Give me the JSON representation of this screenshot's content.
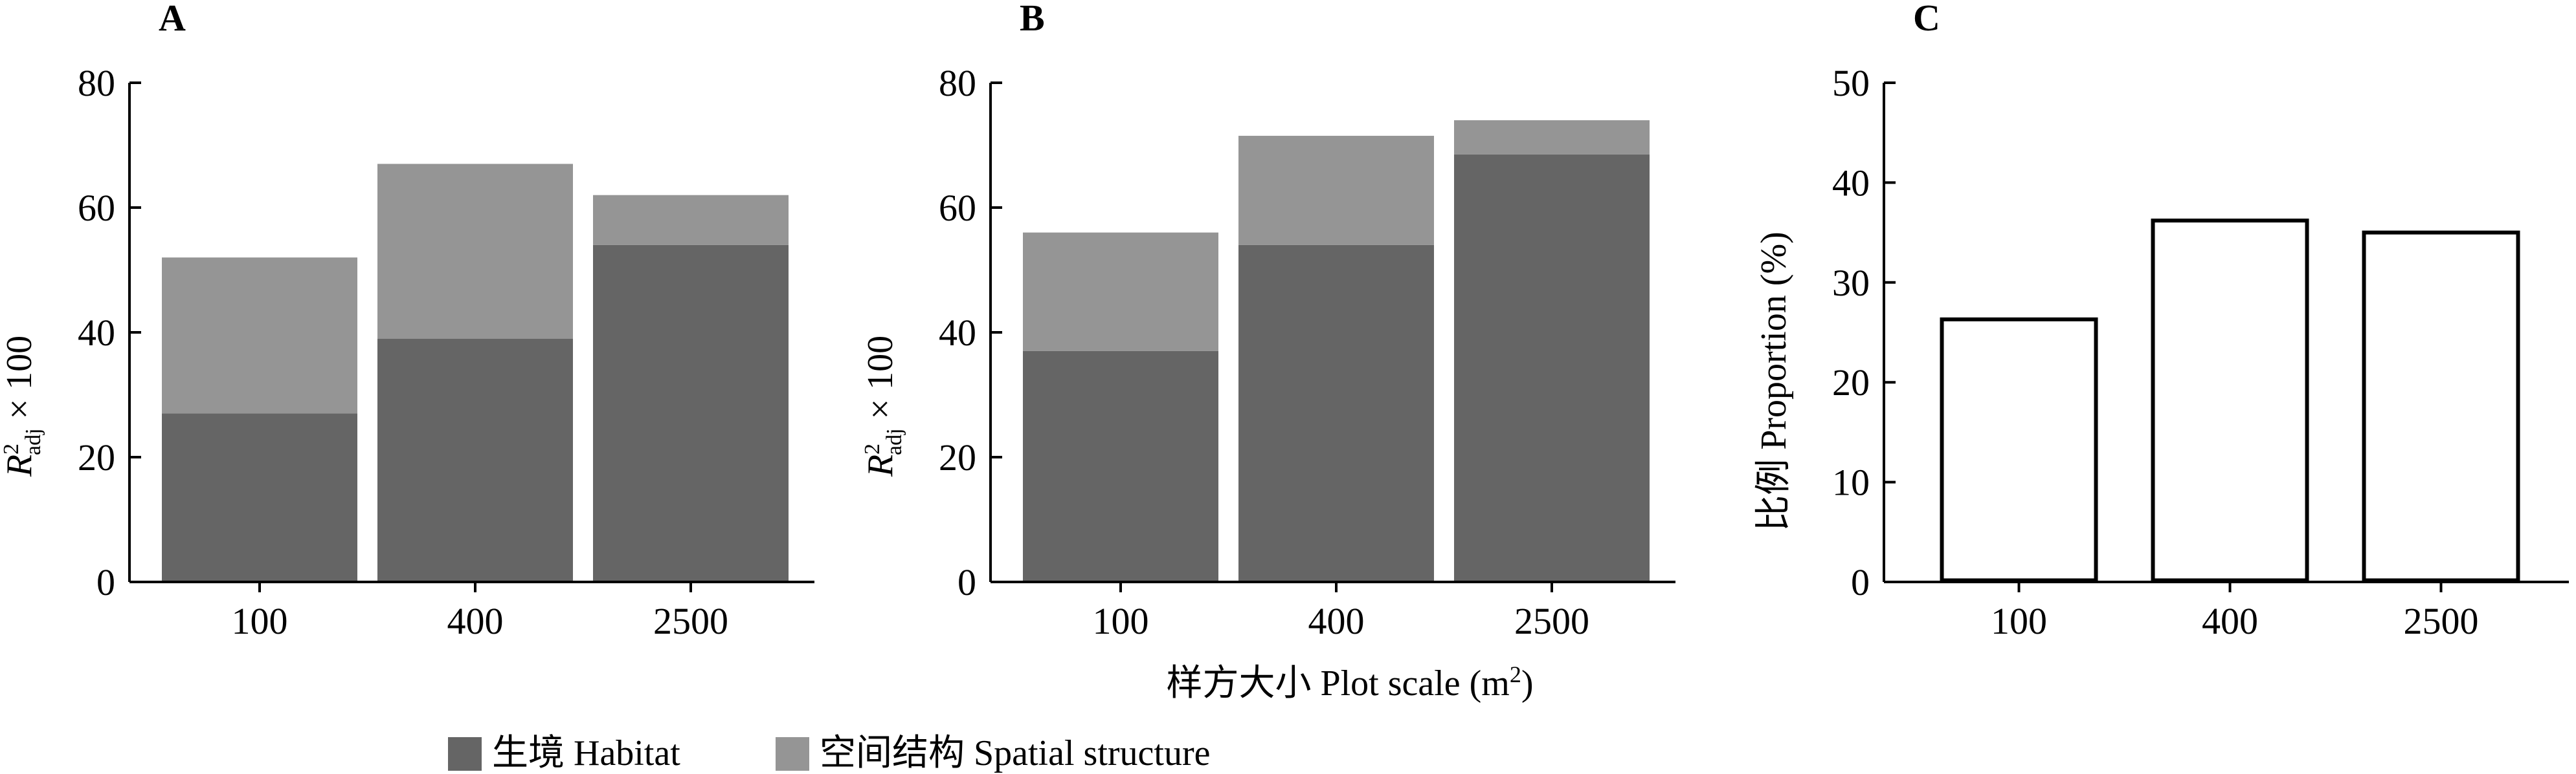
{
  "panels": [
    {
      "label": "A",
      "ylabel_main": "R",
      "ylabel_sup": "2",
      "ylabel_sub": "adj",
      "ylabel_tail": " × 100"
    },
    {
      "label": "B",
      "ylabel_main": "R",
      "ylabel_sup": "2",
      "ylabel_sub": "adj",
      "ylabel_tail": " × 100"
    },
    {
      "label": "C",
      "ylabel_main": "比例 Proportion (%)"
    }
  ],
  "xlabel_main": "样方大小 Plot scale (m",
  "xlabel_sup": "2",
  "xlabel_tail": ")",
  "legend": [
    {
      "label": "生境 Habitat",
      "color": "#656565"
    },
    {
      "label": "空间结构 Spatial structure",
      "color": "#959595"
    }
  ],
  "chart_data": [
    {
      "type": "bar",
      "stacked": true,
      "panel": "A",
      "categories": [
        "100",
        "400",
        "2500"
      ],
      "series": [
        {
          "name": "生境 Habitat",
          "values": [
            27,
            39,
            54
          ],
          "color": "#656565"
        },
        {
          "name": "空间结构 Spatial structure",
          "values": [
            25,
            28,
            8
          ],
          "color": "#959595"
        }
      ],
      "ylim": [
        0,
        80
      ],
      "yticks": [
        0,
        20,
        40,
        60,
        80
      ],
      "ylabel": "R2adj × 100"
    },
    {
      "type": "bar",
      "stacked": true,
      "panel": "B",
      "categories": [
        "100",
        "400",
        "2500"
      ],
      "series": [
        {
          "name": "生境 Habitat",
          "values": [
            37,
            54,
            68.5
          ],
          "color": "#656565"
        },
        {
          "name": "空间结构 Spatial structure",
          "values": [
            19,
            17.5,
            5.5
          ],
          "color": "#959595"
        }
      ],
      "ylim": [
        0,
        80
      ],
      "yticks": [
        0,
        20,
        40,
        60,
        80
      ],
      "ylabel": "R2adj × 100",
      "xlabel": "样方大小 Plot scale (m2)"
    },
    {
      "type": "bar",
      "stacked": false,
      "panel": "C",
      "categories": [
        "100",
        "400",
        "2500"
      ],
      "series": [
        {
          "values": [
            26.3,
            36.2,
            35
          ],
          "color": "#ffffff",
          "outline": "#000000"
        }
      ],
      "ylim": [
        0,
        50
      ],
      "yticks": [
        0,
        10,
        20,
        30,
        40,
        50
      ],
      "ylabel": "比例 Proportion (%)"
    }
  ]
}
